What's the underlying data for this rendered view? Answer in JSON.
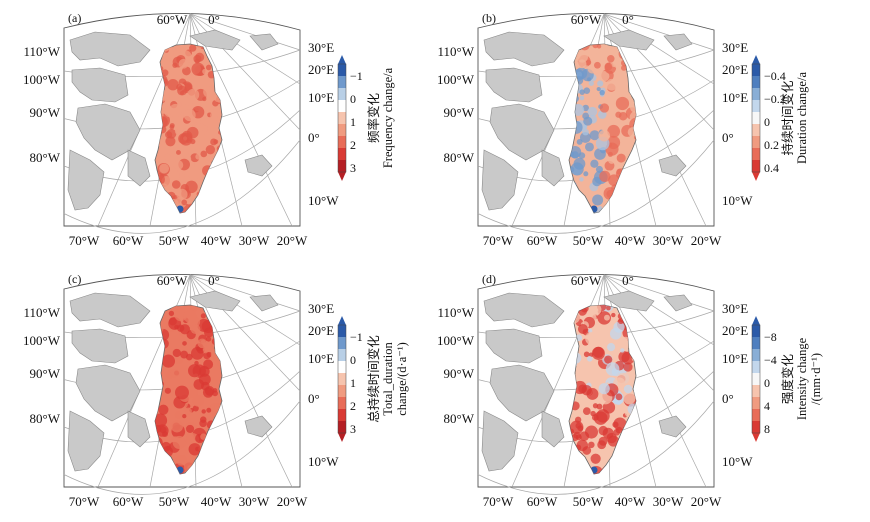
{
  "chart_data": {
    "type": "heatmap",
    "description_panels": [
      "(a)",
      "(b)",
      "(c)",
      "(d)"
    ],
    "panels": [
      {
        "label": "(a)",
        "top_lon_labels": [
          "60°W",
          "0°"
        ],
        "left_lat_labels": [
          "110°W",
          "100°W",
          "90°W",
          "80°W"
        ],
        "right_lon_labels": [
          "30°E",
          "20°E",
          "10°E",
          "0°",
          "10°W"
        ],
        "bottom_lon_labels": [
          "70°W",
          "60°W",
          "50°W",
          "40°W",
          "30°W",
          "20°W"
        ],
        "colorbar": {
          "ticks": [
            "−1",
            "0",
            "1",
            "2",
            "3"
          ],
          "title_cn": "频率变化",
          "title_en": "Frequency change/a",
          "colors": [
            "#2b5aa8",
            "#6f99cc",
            "#b8cfe6",
            "#ffffff",
            "#f6c4ae",
            "#f09b80",
            "#e86c58",
            "#d93a34",
            "#b51f24"
          ]
        }
      },
      {
        "label": "(b)",
        "top_lon_labels": [
          "60°W",
          "0°"
        ],
        "left_lat_labels": [
          "110°W",
          "100°W",
          "90°W",
          "80°W"
        ],
        "right_lon_labels": [
          "30°E",
          "20°E",
          "10°E",
          "0°",
          "10°W"
        ],
        "bottom_lon_labels": [
          "70°W",
          "60°W",
          "50°W",
          "40°W",
          "30°W",
          "20°W"
        ],
        "colorbar": {
          "ticks": [
            "−0.4",
            "−0.2",
            "0",
            "0.2",
            "0.4"
          ],
          "title_cn": "持续时间变化",
          "title_en": "Duration change/a",
          "colors": [
            "#2b5aa8",
            "#4f7fbf",
            "#89aed6",
            "#c3d7ec",
            "#f7f7f7",
            "#f6c4ae",
            "#f09b80",
            "#e86c58",
            "#d93a34"
          ]
        }
      },
      {
        "label": "(c)",
        "top_lon_labels": [
          "60°W",
          "0°"
        ],
        "left_lat_labels": [
          "110°W",
          "100°W",
          "90°W",
          "80°W"
        ],
        "right_lon_labels": [
          "30°E",
          "20°E",
          "10°E",
          "0°",
          "10°W"
        ],
        "bottom_lon_labels": [
          "70°W",
          "60°W",
          "50°W",
          "40°W",
          "30°W",
          "20°W"
        ],
        "colorbar": {
          "ticks": [
            "−1",
            "0",
            "1",
            "2",
            "3"
          ],
          "title_cn": "总持续时间变化",
          "title_en": "Total_duration",
          "title_en2": "change/(d·a⁻¹)",
          "colors": [
            "#2b5aa8",
            "#6f99cc",
            "#b8cfe6",
            "#ffffff",
            "#f6c4ae",
            "#f09b80",
            "#e86c58",
            "#d93a34",
            "#b51f24"
          ]
        }
      },
      {
        "label": "(d)",
        "top_lon_labels": [
          "60°W",
          "0°"
        ],
        "left_lat_labels": [
          "110°W",
          "100°W",
          "90°W",
          "80°W"
        ],
        "right_lon_labels": [
          "30°E",
          "20°E",
          "10°E",
          "0°",
          "10°W"
        ],
        "bottom_lon_labels": [
          "70°W",
          "60°W",
          "50°W",
          "40°W",
          "30°W",
          "20°W"
        ],
        "colorbar": {
          "ticks": [
            "−8",
            "−4",
            "0",
            "4",
            "8"
          ],
          "title_cn": "强度变化",
          "title_en": "Intensity change",
          "title_en2": "/(mm·d⁻¹)",
          "colors": [
            "#2b5aa8",
            "#4f7fbf",
            "#89aed6",
            "#c3d7ec",
            "#f7f7f7",
            "#f6c4ae",
            "#f09b80",
            "#e86c58",
            "#d93a34"
          ]
        }
      }
    ],
    "greenland_fill": {
      "(a)": {
        "base": "#f09b80",
        "hot": "#e25848",
        "cool": "#4f7fbf"
      },
      "(b)": {
        "base": "#f3b49a",
        "hot": "#e86c58",
        "cool": "#6f99cc"
      },
      "(c)": {
        "base": "#ea7a62",
        "hot": "#d93a34",
        "cool": "#4f7fbf"
      },
      "(d)": {
        "base": "#f6c4ae",
        "hot": "#d93a34",
        "cool": "#c3d7ec"
      }
    },
    "land_color": "#c9c9c9"
  }
}
